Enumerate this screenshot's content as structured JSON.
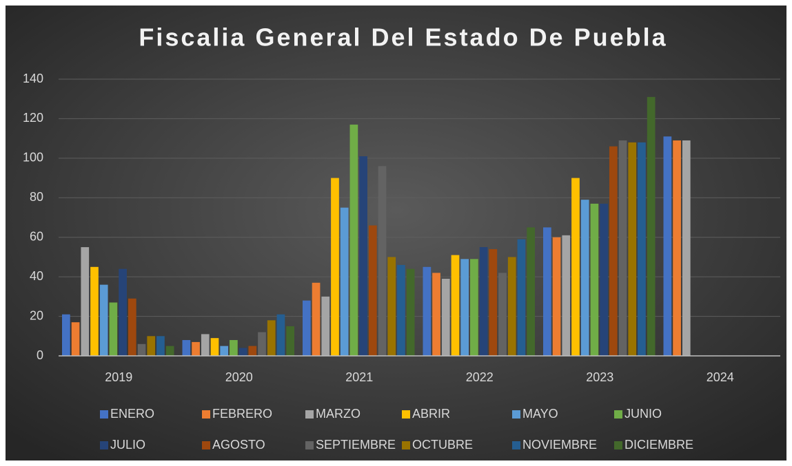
{
  "chart_data": {
    "type": "bar",
    "title": "Fiscalia General Del Estado De Puebla",
    "categories": [
      "2019",
      "2020",
      "2021",
      "2022",
      "2023",
      "2024"
    ],
    "ylim": [
      0,
      140
    ],
    "yticks": [
      0,
      20,
      40,
      60,
      80,
      100,
      120,
      140
    ],
    "grid": true,
    "legend": "bottom",
    "series": [
      {
        "name": "ENERO",
        "color": "#4472c4",
        "values": [
          21,
          8,
          28,
          45,
          65,
          111
        ]
      },
      {
        "name": "FEBRERO",
        "color": "#ed7d31",
        "values": [
          17,
          7,
          37,
          42,
          60,
          109
        ]
      },
      {
        "name": "MARZO",
        "color": "#a5a5a5",
        "values": [
          55,
          11,
          30,
          39,
          61,
          109
        ]
      },
      {
        "name": "ABRIR",
        "color": "#ffc000",
        "values": [
          45,
          9,
          90,
          51,
          90,
          null
        ]
      },
      {
        "name": "MAYO",
        "color": "#5b9bd5",
        "values": [
          36,
          5,
          75,
          49,
          79,
          null
        ]
      },
      {
        "name": "JUNIO",
        "color": "#70ad47",
        "values": [
          27,
          8,
          117,
          49,
          77,
          null
        ]
      },
      {
        "name": "JULIO",
        "color": "#264478",
        "values": [
          44,
          4,
          101,
          55,
          77,
          null
        ]
      },
      {
        "name": "AGOSTO",
        "color": "#9e480e",
        "values": [
          29,
          5,
          66,
          54,
          106,
          null
        ]
      },
      {
        "name": "SEPTIEMBRE",
        "color": "#636363",
        "values": [
          6,
          12,
          96,
          42,
          109,
          null
        ]
      },
      {
        "name": "OCTUBRE",
        "color": "#997300",
        "values": [
          10,
          18,
          50,
          50,
          108,
          null
        ]
      },
      {
        "name": "NOVIEMBRE",
        "color": "#255e91",
        "values": [
          10,
          21,
          46,
          59,
          108,
          null
        ]
      },
      {
        "name": "DICIEMBRE",
        "color": "#43682b",
        "values": [
          5,
          15,
          44,
          65,
          131,
          null
        ]
      }
    ]
  }
}
